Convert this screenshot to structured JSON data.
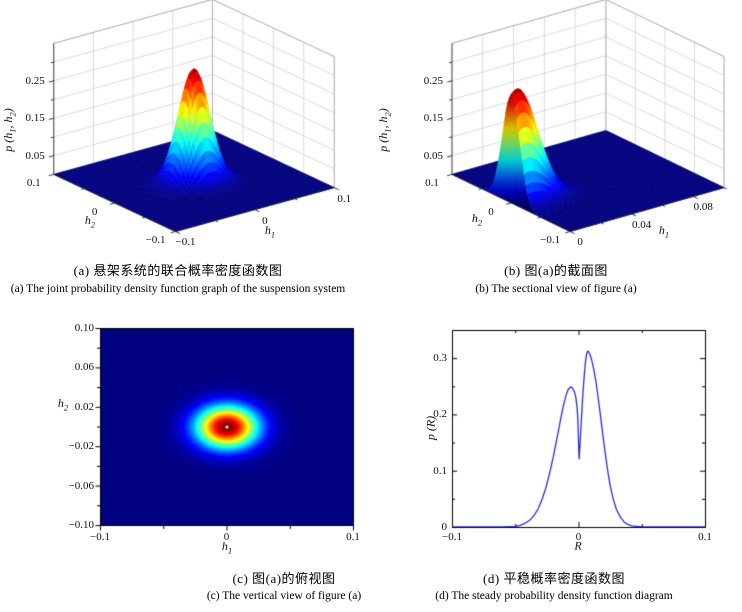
{
  "figure": {
    "background": "#ffffff",
    "text_color": "#111111",
    "grid_color": "#cccccc",
    "box_color": "#a8a8a8",
    "axis_color": "#222222",
    "colormap_low": "#000080",
    "colormap_high": "#800000"
  },
  "captions": {
    "a_cn": "(a) 悬架系统的联合概率密度函数图",
    "a_en": "(a) The joint probability density function graph of the suspension system",
    "b_cn": "(b) 图(a)的截面图",
    "b_en": "(b) The sectional view of figure (a)",
    "c_cn": "(c) 图(a)的俯视图",
    "c_en": "(c) The vertical view of figure (a)",
    "d_cn": "(d) 平稳概率密度函数图",
    "d_en": "(d) The steady probability density function diagram"
  },
  "axis_labels": {
    "h1": {
      "base": "h",
      "sub": "1"
    },
    "h2": {
      "base": "h",
      "sub": "2"
    },
    "p_h1h2": {
      "pre": "p (h",
      "s1": "1",
      "mid": ", h",
      "s2": "2",
      "post": ")"
    },
    "R": "R",
    "p_R": {
      "pre": "p (",
      "var": "R",
      "post": ")"
    }
  },
  "chart_data": [
    {
      "id": "a",
      "type": "surface3d",
      "colormap": "jet",
      "x_range": [
        -0.1,
        0.1
      ],
      "y_range": [
        -0.1,
        0.1
      ],
      "z_range": [
        0,
        0.35
      ],
      "x_ticks": [
        {
          "v": -0.1,
          "l": "−0.1"
        },
        {
          "v": 0,
          "l": "0"
        },
        {
          "v": 0.1,
          "l": "0.1"
        }
      ],
      "x_minor": [
        -0.05,
        0.05
      ],
      "y_ticks": [
        {
          "v": 0.1,
          "l": "0.1"
        },
        {
          "v": 0,
          "l": "0"
        },
        {
          "v": -0.1,
          "l": "−0.1"
        }
      ],
      "y_minor": [
        -0.05,
        0.05
      ],
      "z_ticks": [
        {
          "v": 0.05,
          "l": "0.05"
        },
        {
          "v": 0.15,
          "l": "0.15"
        },
        {
          "v": 0.25,
          "l": "0.25"
        }
      ],
      "z_minor": [
        0.1,
        0.2,
        0.3
      ],
      "surface": {
        "peak": 0.3,
        "x0": 0,
        "y0": 0,
        "sigma_x": 0.016,
        "sigma_y": 0.0145
      }
    },
    {
      "id": "b",
      "type": "surface3d",
      "colormap": "jet",
      "cut_wall": true,
      "x_range": [
        0,
        0.1
      ],
      "y_range": [
        -0.1,
        0.1
      ],
      "z_range": [
        0,
        0.35
      ],
      "x_ticks": [
        {
          "v": 0,
          "l": "0"
        },
        {
          "v": 0.04,
          "l": "0.04"
        },
        {
          "v": 0.08,
          "l": "0.08"
        }
      ],
      "x_minor": [
        0.02,
        0.06,
        0.1
      ],
      "y_ticks": [
        {
          "v": 0.1,
          "l": "0.1"
        },
        {
          "v": 0,
          "l": "0"
        },
        {
          "v": -0.1,
          "l": "−0.1"
        }
      ],
      "y_minor": [
        -0.05,
        0.05
      ],
      "z_ticks": [
        {
          "v": 0.05,
          "l": "0.05"
        },
        {
          "v": 0.15,
          "l": "0.15"
        },
        {
          "v": 0.25,
          "l": "0.25"
        }
      ],
      "z_minor": [
        0.1,
        0.2,
        0.3
      ],
      "surface": {
        "peak": 0.3,
        "x0": 0.004,
        "y0": 0,
        "sigma_x": 0.012,
        "sigma_y": 0.0145
      }
    },
    {
      "id": "c",
      "type": "heatmap",
      "colormap": "jet",
      "center_dot_color": "#fdf6c8",
      "x_range": [
        -0.1,
        0.1
      ],
      "y_range": [
        -0.1,
        0.1
      ],
      "x_ticks": [
        {
          "v": -0.1,
          "l": "−0.1"
        },
        {
          "v": 0,
          "l": "0"
        },
        {
          "v": 0.1,
          "l": "0.1"
        }
      ],
      "x_minor": [
        -0.05,
        0.05
      ],
      "y_ticks": [
        {
          "v": 0.1,
          "l": "0.10"
        },
        {
          "v": 0.06,
          "l": "0.06"
        },
        {
          "v": 0.02,
          "l": "0.02"
        },
        {
          "v": -0.02,
          "l": "−0.02"
        },
        {
          "v": -0.06,
          "l": "−0.06"
        },
        {
          "v": -0.1,
          "l": "−0.10"
        }
      ],
      "y_minor": [
        0.08,
        0.04,
        0,
        -0.04,
        -0.08
      ],
      "surface": {
        "peak": 0.3,
        "x0": 0,
        "y0": 0,
        "sigma_x": 0.017,
        "sigma_y": 0.015
      }
    },
    {
      "id": "d",
      "type": "line",
      "line_color": "#2b2bdd",
      "x_range": [
        -0.1,
        0.1
      ],
      "y_range": [
        0,
        0.35
      ],
      "x_ticks": [
        {
          "v": -0.1,
          "l": "−0.1"
        },
        {
          "v": 0,
          "l": "0"
        },
        {
          "v": 0.1,
          "l": "0.1"
        }
      ],
      "x_minor": [
        -0.05,
        0.05
      ],
      "y_ticks": [
        {
          "v": 0,
          "l": "0"
        },
        {
          "v": 0.1,
          "l": "0.1"
        },
        {
          "v": 0.2,
          "l": "0.2"
        },
        {
          "v": 0.3,
          "l": "0.3"
        }
      ],
      "y_minor": [
        0.05,
        0.15,
        0.25,
        0.35
      ],
      "points": [
        [
          -0.1,
          0
        ],
        [
          -0.06,
          0
        ],
        [
          -0.055,
          0.0005
        ],
        [
          -0.05,
          0.001
        ],
        [
          -0.046,
          0.003
        ],
        [
          -0.042,
          0.007
        ],
        [
          -0.038,
          0.013
        ],
        [
          -0.035,
          0.021
        ],
        [
          -0.032,
          0.032
        ],
        [
          -0.029,
          0.048
        ],
        [
          -0.026,
          0.068
        ],
        [
          -0.023,
          0.094
        ],
        [
          -0.02,
          0.124
        ],
        [
          -0.017,
          0.158
        ],
        [
          -0.014,
          0.193
        ],
        [
          -0.012,
          0.215
        ],
        [
          -0.01,
          0.233
        ],
        [
          -0.008,
          0.245
        ],
        [
          -0.006,
          0.249
        ],
        [
          -0.0045,
          0.246
        ],
        [
          -0.003,
          0.239
        ],
        [
          -0.002,
          0.229
        ],
        [
          -0.0012,
          0.214
        ],
        [
          -0.0006,
          0.195
        ],
        [
          -0.0002,
          0.168
        ],
        [
          0.0002,
          0.138
        ],
        [
          0.0005,
          0.121
        ],
        [
          0.001,
          0.139
        ],
        [
          0.0016,
          0.163
        ],
        [
          0.0024,
          0.196
        ],
        [
          0.0032,
          0.227
        ],
        [
          0.004,
          0.253
        ],
        [
          0.0048,
          0.276
        ],
        [
          0.0056,
          0.295
        ],
        [
          0.0064,
          0.307
        ],
        [
          0.0072,
          0.3125
        ],
        [
          0.008,
          0.3115
        ],
        [
          0.009,
          0.307
        ],
        [
          0.0105,
          0.296
        ],
        [
          0.012,
          0.281
        ],
        [
          0.0135,
          0.262
        ],
        [
          0.015,
          0.239
        ],
        [
          0.017,
          0.204
        ],
        [
          0.019,
          0.168
        ],
        [
          0.021,
          0.133
        ],
        [
          0.023,
          0.101
        ],
        [
          0.025,
          0.074
        ],
        [
          0.0275,
          0.049
        ],
        [
          0.03,
          0.031
        ],
        [
          0.033,
          0.018
        ],
        [
          0.036,
          0.009
        ],
        [
          0.039,
          0.0045
        ],
        [
          0.042,
          0.002
        ],
        [
          0.046,
          0.001
        ],
        [
          0.05,
          0
        ],
        [
          0.1,
          0
        ]
      ]
    }
  ]
}
